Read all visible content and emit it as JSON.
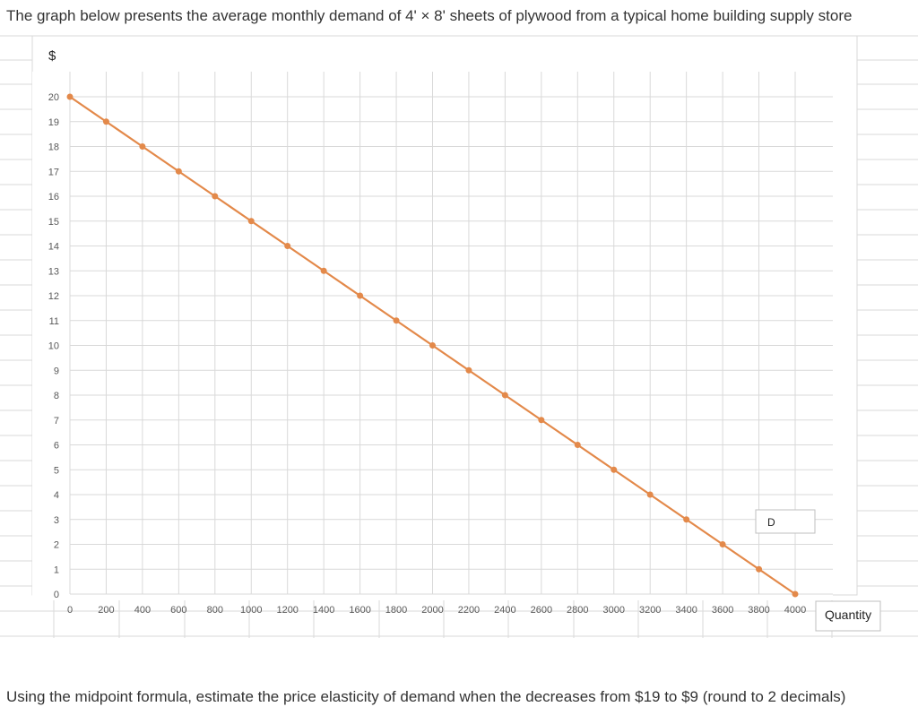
{
  "question": {
    "intro": "The graph below presents the average monthly demand of 4' × 8' sheets of plywood from a typical home building supply store",
    "prompt": "Using the midpoint formula, estimate the price elasticity of demand when the decreases from $19  to $9 (round to 2 decimals)"
  },
  "chart_data": {
    "type": "line",
    "title": "",
    "ylabel": "$",
    "xlabel": "Quantity",
    "series_label": "D",
    "xlim": [
      0,
      4000
    ],
    "ylim": [
      0,
      20
    ],
    "grid": true,
    "x_ticks": [
      0,
      200,
      400,
      600,
      800,
      1000,
      1200,
      1400,
      1600,
      1800,
      2000,
      2200,
      2400,
      2600,
      2800,
      3000,
      3200,
      3400,
      3600,
      3800,
      4000
    ],
    "y_ticks": [
      0,
      1,
      2,
      3,
      4,
      5,
      6,
      7,
      8,
      9,
      10,
      11,
      12,
      13,
      14,
      15,
      16,
      17,
      18,
      19,
      20
    ],
    "series": [
      {
        "color": "#E3894A",
        "x": [
          0,
          200,
          400,
          600,
          800,
          1000,
          1200,
          1400,
          1600,
          1800,
          2000,
          2200,
          2400,
          2600,
          2800,
          3000,
          3200,
          3400,
          3600,
          3800,
          4000
        ],
        "y": [
          20,
          19,
          18,
          17,
          16,
          15,
          14,
          13,
          12,
          11,
          10,
          9,
          8,
          7,
          6,
          5,
          4,
          3,
          2,
          1,
          0
        ]
      }
    ]
  },
  "colors": {
    "line": "#E3894A",
    "grid": "#D9D9D9",
    "sheet_grid": "#DADADA",
    "text": "#333333",
    "axis_text": "#595959"
  }
}
